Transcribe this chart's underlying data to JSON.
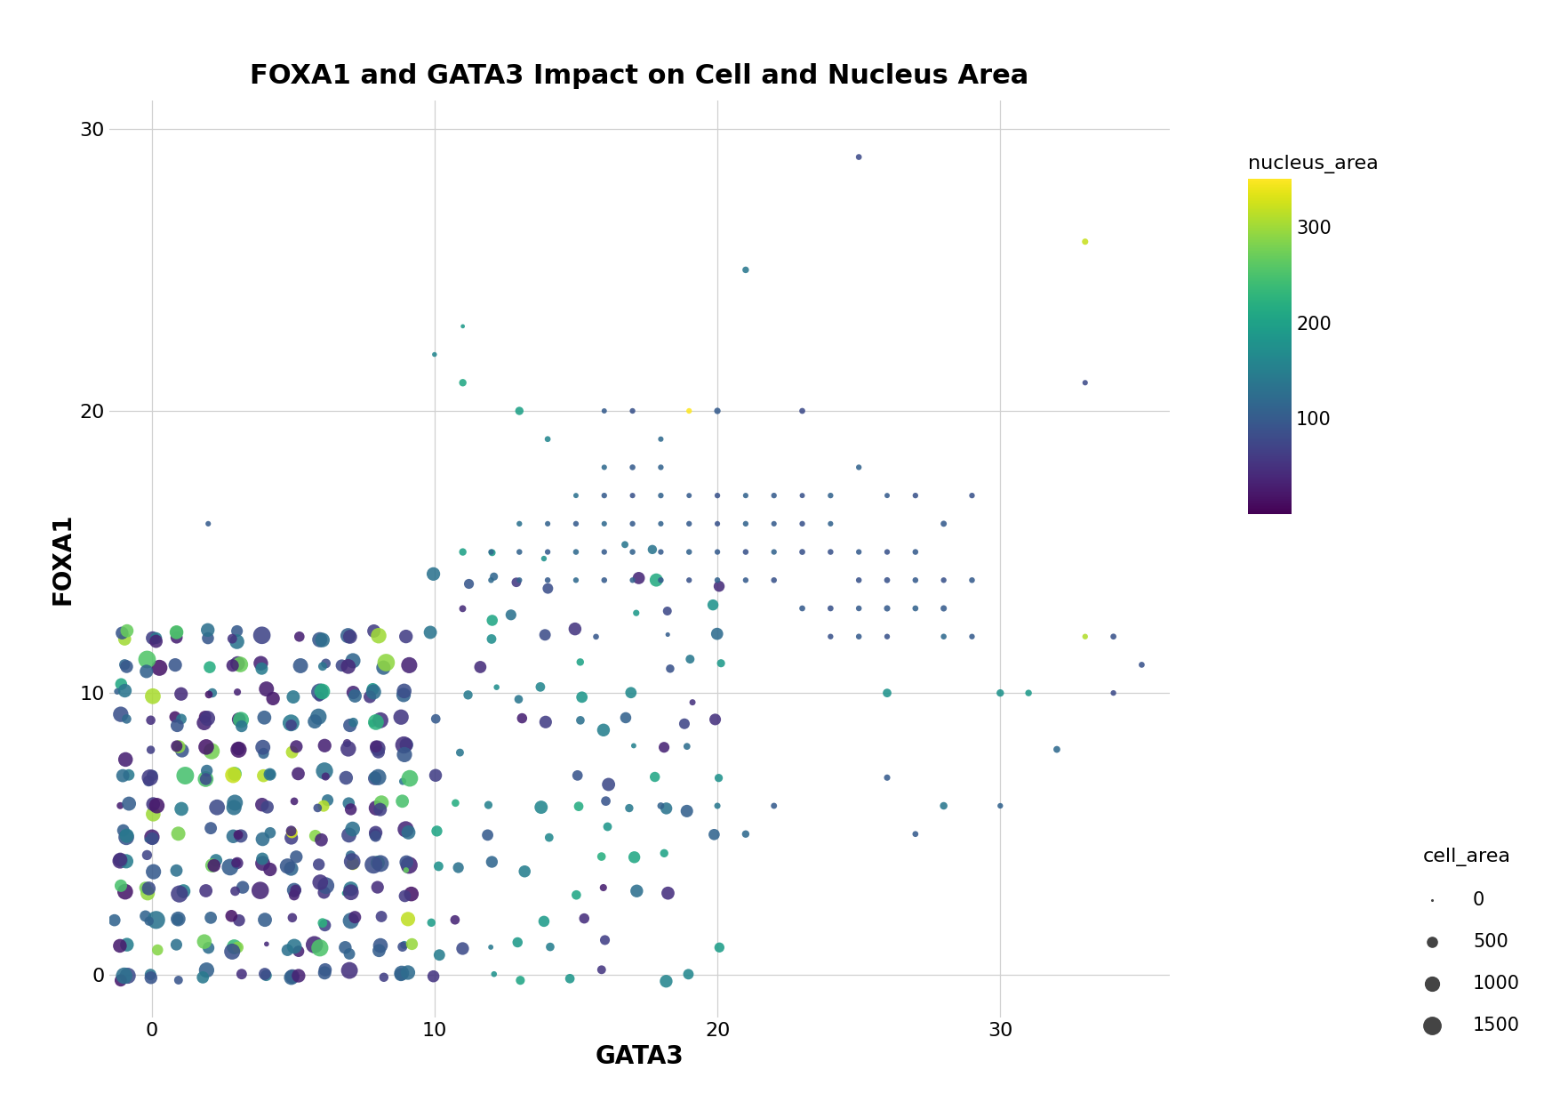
{
  "title": "FOXA1 and GATA3 Impact on Cell and Nucleus Area",
  "xlabel": "GATA3",
  "ylabel": "FOXA1",
  "xlim": [
    -1.5,
    36
  ],
  "ylim": [
    -1.5,
    31
  ],
  "xticks": [
    0,
    10,
    20,
    30
  ],
  "yticks": [
    0,
    10,
    20,
    30
  ],
  "colormap": "viridis",
  "nucleus_area_vmin": 0,
  "nucleus_area_vmax": 350,
  "cbar_ticks": [
    100,
    200,
    300
  ],
  "cell_area_legend_values": [
    0,
    500,
    1000,
    1500
  ],
  "cell_area_scale": 0.13,
  "background_color": "#ffffff",
  "grid_color": "#d0d0d0",
  "title_fontsize": 22,
  "label_fontsize": 20,
  "tick_fontsize": 16,
  "legend_fontsize": 16
}
